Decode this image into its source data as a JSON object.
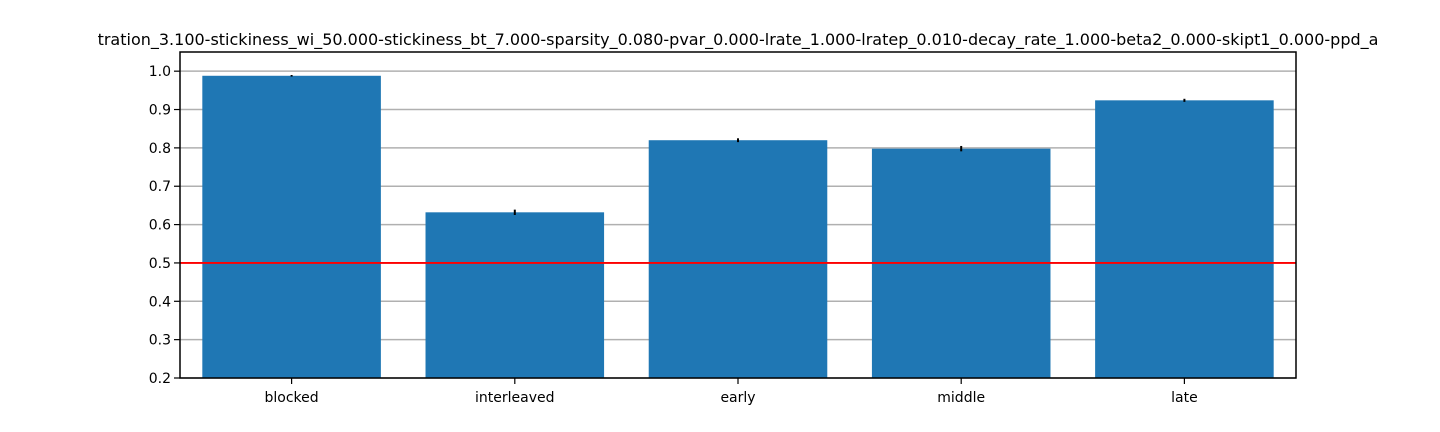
{
  "chart_data": {
    "type": "bar",
    "title": "tration_3.100-stickiness_wi_50.000-stickiness_bt_7.000-sparsity_0.080-pvar_0.000-lrate_1.000-lratep_0.010-decay_rate_1.000-beta2_0.000-skipt1_0.000-ppd_a",
    "xlabel": "",
    "ylabel": "",
    "categories": [
      "blocked",
      "interleaved",
      "early",
      "middle",
      "late"
    ],
    "series": [
      {
        "values": [
          0.988,
          0.632,
          0.82,
          0.798,
          0.924
        ],
        "errors": [
          0.002,
          0.007,
          0.005,
          0.007,
          0.004
        ]
      }
    ],
    "ylim": [
      0.2,
      1.05
    ],
    "yticks": [
      "0.2",
      "0.3",
      "0.4",
      "0.5",
      "0.6",
      "0.7",
      "0.8",
      "0.9",
      "1.0"
    ],
    "grid": "horizontal",
    "reference_line": {
      "y": 0.5,
      "color": "#ff0000"
    },
    "colors": {
      "bar": "#1f77b4",
      "error_bar": "#000000",
      "grid": "#b0b0b0",
      "axes": "#000000"
    }
  }
}
